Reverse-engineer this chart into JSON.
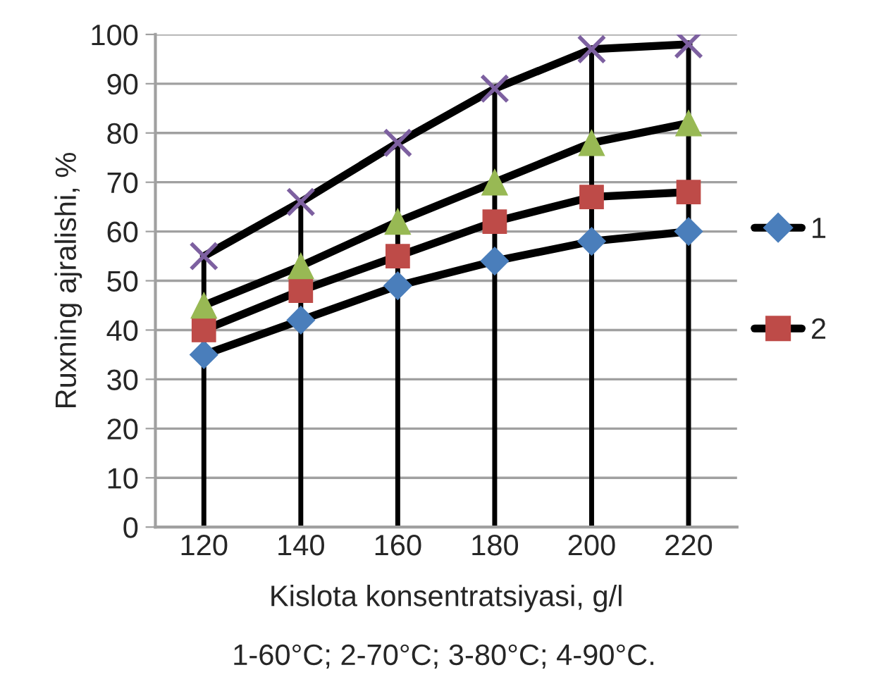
{
  "chart_data": {
    "type": "line",
    "xlabel": "Kislota konsentratsiyasi, g/l",
    "ylabel": "Ruxning ajralishi, %",
    "annotations": [
      "1-60°C; 2-70°C; 3-80°C; 4-90°C."
    ],
    "x": [
      120,
      140,
      160,
      180,
      200,
      220
    ],
    "xlim": [
      110,
      230
    ],
    "xticks": [
      120,
      140,
      160,
      180,
      200,
      220
    ],
    "ylim": [
      0,
      100
    ],
    "yticks": [
      0,
      10,
      20,
      30,
      40,
      50,
      60,
      70,
      80,
      90,
      100
    ],
    "grid": "y",
    "legend": "right",
    "series": [
      {
        "name": "1",
        "color": "#4a7ebb",
        "marker": "diamond",
        "values": [
          35,
          42,
          49,
          54,
          58,
          60
        ]
      },
      {
        "name": "2",
        "color": "#be4b48",
        "marker": "square",
        "values": [
          40,
          48,
          55,
          62,
          67,
          68
        ]
      },
      {
        "color": "#98b954",
        "marker": "triangle",
        "values": [
          45,
          53,
          62,
          70,
          78,
          82
        ]
      },
      {
        "color": "#7d60a0",
        "marker": "cross",
        "values": [
          55,
          66,
          78,
          89,
          97,
          98
        ]
      }
    ],
    "ref_lines": [
      {
        "axis": "x",
        "value": 120,
        "color": "#000000"
      },
      {
        "axis": "x",
        "value": 140,
        "color": "#000000"
      },
      {
        "axis": "x",
        "value": 160,
        "color": "#000000"
      },
      {
        "axis": "x",
        "value": 180,
        "color": "#000000"
      },
      {
        "axis": "x",
        "value": 200,
        "color": "#000000"
      },
      {
        "axis": "x",
        "value": 220,
        "color": "#000000"
      }
    ]
  }
}
